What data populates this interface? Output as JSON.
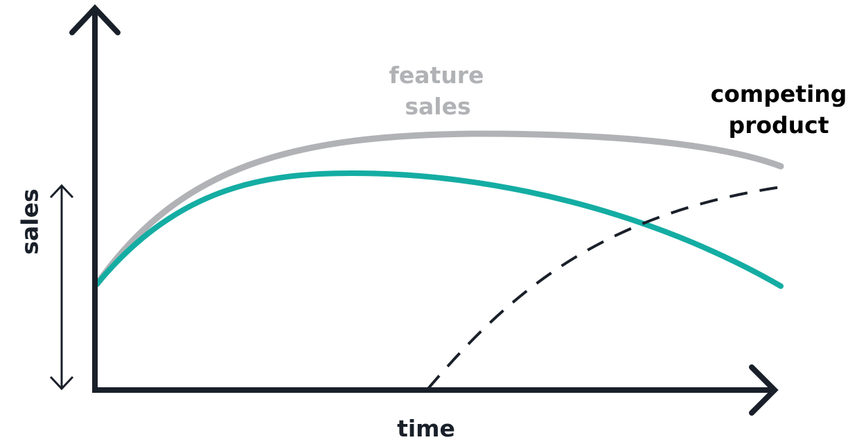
{
  "labels": {
    "y_axis": "sales",
    "x_axis": "time",
    "feature_sales": [
      "feature",
      "sales"
    ],
    "competing_product": [
      "competing",
      "product"
    ]
  },
  "colors": {
    "axis": "#1a202a",
    "feature_sales": "#b0b2b5",
    "sales": "#14ada3",
    "competing_product": "#1a202a"
  },
  "curves": {
    "feature_sales": "solid-gray",
    "sales": "solid-teal",
    "competing_product": "dashed-dark"
  },
  "icons": {
    "y_axis_arrow": "arrow-up-icon",
    "x_axis_arrow": "arrow-right-icon",
    "range_indicator": "double-arrow-vertical-icon"
  }
}
